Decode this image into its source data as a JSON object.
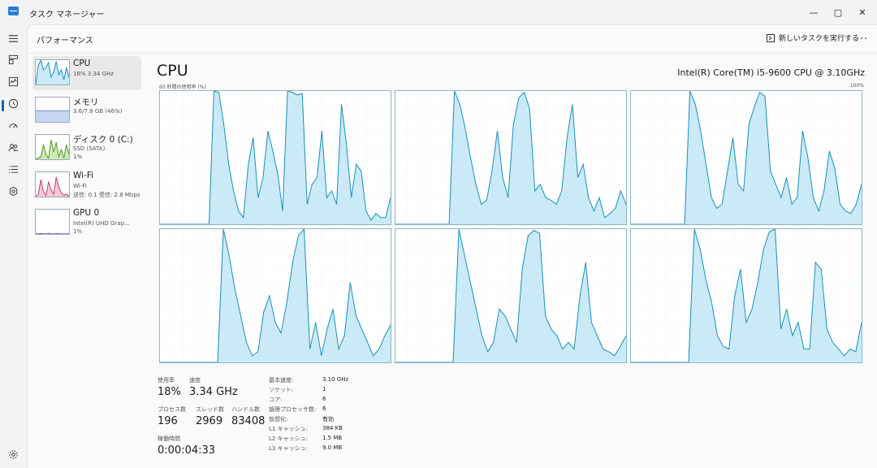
{
  "window": {
    "title": "タスク マネージャー",
    "min": "—",
    "max": "▢",
    "close": "✕"
  },
  "nav": [
    "menu-icon",
    "processes-icon",
    "performance-icon",
    "history-icon",
    "startup-icon",
    "users-icon",
    "details-icon",
    "services-icon",
    "settings-icon"
  ],
  "header": {
    "title": "パフォーマンス",
    "run_task": "新しいタスクを実行する",
    "more": "..."
  },
  "devices": [
    {
      "name": "CPU",
      "sub1": "18%  3.34 GHz",
      "sub2": "",
      "sub3": ""
    },
    {
      "name": "メモリ",
      "sub1": "3.6/7.8 GB (46%)",
      "sub2": "",
      "sub3": ""
    },
    {
      "name": "ディスク 0 (C:)",
      "sub1": "SSD (SATA)",
      "sub2": "1%",
      "sub3": ""
    },
    {
      "name": "Wi-Fi",
      "sub1": "Wi-Fi",
      "sub2": "送信: 0.1  受信: 2.8 Mbps",
      "sub3": ""
    },
    {
      "name": "GPU 0",
      "sub1": "Intel(R) UHD Grap...",
      "sub2": "1%",
      "sub3": ""
    }
  ],
  "main": {
    "title": "CPU",
    "model": "Intel(R) Core(TM) i5-9600 CPU @ 3.10GHz",
    "axis_left": "60 秒間の使用率 (%)",
    "axis_right": "100%"
  },
  "colors": {
    "accent": "#0067c0",
    "graph_fill": "#c9eaf6",
    "graph_line": "#1b8fb7",
    "grid": "#e6eef2"
  },
  "cores": [
    [
      0,
      0,
      0,
      0,
      0,
      0,
      0,
      0,
      0,
      0,
      0,
      100,
      99,
      75,
      45,
      25,
      10,
      5,
      45,
      65,
      20,
      35,
      70,
      55,
      38,
      10,
      100,
      99,
      97,
      98,
      15,
      30,
      35,
      70,
      20,
      25,
      15,
      90,
      60,
      20,
      45,
      40,
      10,
      3,
      8,
      5,
      5,
      20
    ],
    [
      0,
      0,
      0,
      0,
      0,
      0,
      0,
      0,
      0,
      0,
      0,
      100,
      90,
      72,
      50,
      30,
      15,
      18,
      40,
      70,
      35,
      20,
      75,
      95,
      99,
      87,
      25,
      30,
      20,
      18,
      15,
      25,
      65,
      90,
      35,
      45,
      20,
      10,
      20,
      5,
      8,
      12,
      25,
      15
    ],
    [
      0,
      0,
      0,
      0,
      0,
      0,
      0,
      0,
      0,
      0,
      0,
      100,
      90,
      70,
      45,
      20,
      12,
      15,
      40,
      65,
      30,
      25,
      75,
      88,
      99,
      96,
      40,
      30,
      20,
      35,
      15,
      20,
      70,
      50,
      20,
      10,
      25,
      55,
      42,
      15,
      10,
      8,
      15,
      30
    ],
    [
      0,
      0,
      0,
      0,
      0,
      0,
      0,
      0,
      0,
      0,
      0,
      100,
      80,
      55,
      35,
      15,
      5,
      8,
      38,
      50,
      30,
      22,
      45,
      75,
      95,
      100,
      10,
      30,
      5,
      25,
      40,
      10,
      20,
      60,
      35,
      25,
      15,
      5,
      10,
      20,
      28
    ],
    [
      0,
      0,
      0,
      0,
      0,
      0,
      0,
      0,
      0,
      0,
      0,
      100,
      80,
      60,
      40,
      20,
      8,
      15,
      40,
      35,
      25,
      15,
      70,
      95,
      99,
      97,
      35,
      25,
      20,
      10,
      15,
      10,
      50,
      75,
      30,
      20,
      10,
      8,
      5,
      12,
      20
    ],
    [
      0,
      0,
      0,
      0,
      0,
      0,
      0,
      0,
      0,
      0,
      0,
      100,
      85,
      62,
      45,
      20,
      12,
      10,
      50,
      70,
      30,
      40,
      60,
      85,
      98,
      100,
      25,
      40,
      20,
      30,
      10,
      10,
      75,
      70,
      25,
      15,
      10,
      5,
      10,
      8,
      30
    ]
  ],
  "thumbs": {
    "cpu": [
      0,
      80,
      100,
      60,
      70,
      90,
      30,
      50,
      95,
      40,
      60,
      20,
      70,
      30
    ],
    "mem": [
      46,
      46,
      46,
      46,
      46,
      46,
      46,
      46,
      46,
      46,
      46,
      46,
      46,
      46
    ],
    "disk": [
      0,
      5,
      10,
      60,
      20,
      5,
      80,
      30,
      70,
      10,
      40,
      5,
      60,
      20
    ],
    "wifi": [
      0,
      10,
      70,
      20,
      5,
      60,
      30,
      10,
      80,
      40,
      15,
      5,
      10,
      0
    ],
    "gpu": [
      0,
      1,
      2,
      1,
      0,
      3,
      1,
      0,
      2,
      1,
      1,
      0,
      1,
      1
    ]
  },
  "stats": {
    "usage_label": "使用率",
    "usage": "18%",
    "speed_label": "速度",
    "speed": "3.34 GHz",
    "proc_label": "プロセス数",
    "proc": "196",
    "thread_label": "スレッド数",
    "thread": "2969",
    "handle_label": "ハンドル数",
    "handle": "83408",
    "uptime_label": "稼働時間",
    "uptime": "0:00:04:33"
  },
  "specs": [
    {
      "k": "基本速度:",
      "v": "3.10 GHz"
    },
    {
      "k": "ソケット:",
      "v": "1"
    },
    {
      "k": "コア:",
      "v": "6"
    },
    {
      "k": "論理プロセッサ数:",
      "v": "6"
    },
    {
      "k": "仮想化:",
      "v": "有効"
    },
    {
      "k": "L1 キャッシュ:",
      "v": "384 KB"
    },
    {
      "k": "L2 キャッシュ:",
      "v": "1.5 MB"
    },
    {
      "k": "L3 キャッシュ:",
      "v": "9.0 MB"
    }
  ]
}
